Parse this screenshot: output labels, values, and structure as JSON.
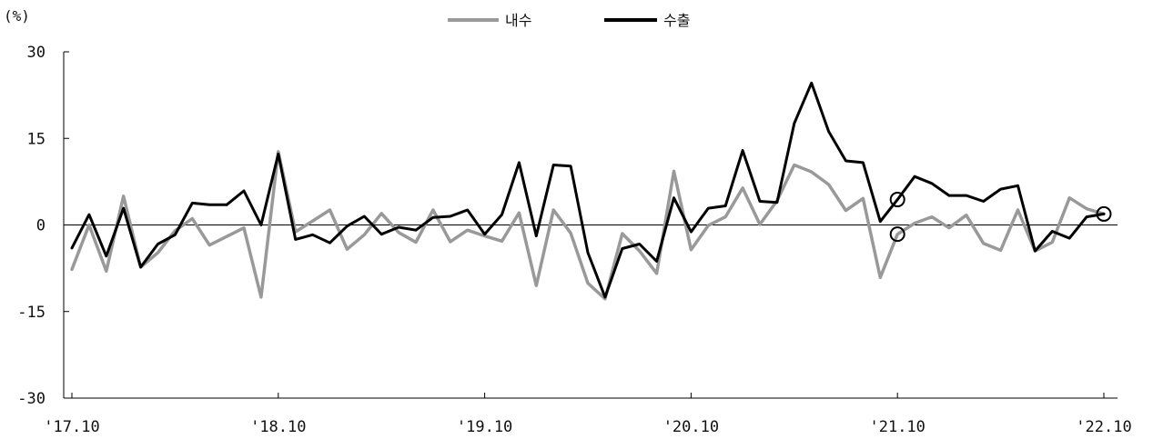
{
  "chart_data": {
    "type": "line",
    "title": "",
    "unit_label": "(%)",
    "xlabel": "",
    "ylabel": "",
    "ylim": [
      -30,
      30
    ],
    "yticks": [
      30,
      15,
      0,
      -15,
      -30
    ],
    "ytick_labels": [
      "30",
      "15",
      "0",
      "-15",
      "-30"
    ],
    "x_start": "2017-10",
    "x_end": "2022-10",
    "xticks": [
      {
        "label": "'17.10",
        "index": 0
      },
      {
        "label": "'18.10",
        "index": 12
      },
      {
        "label": "'19.10",
        "index": 24
      },
      {
        "label": "'20.10",
        "index": 36
      },
      {
        "label": "'21.10",
        "index": 48
      },
      {
        "label": "'22.10",
        "index": 60
      }
    ],
    "legend_position": "top-center",
    "series": [
      {
        "name": "내수",
        "color": "#999999",
        "values": [
          -7.7,
          0.0,
          -8.0,
          5.0,
          -7.3,
          -4.8,
          -1.0,
          1.1,
          -3.5,
          -2.0,
          -0.5,
          -12.5,
          12.7,
          -1.2,
          0.7,
          2.6,
          -4.2,
          -1.7,
          2.0,
          -1.3,
          -3.0,
          2.6,
          -2.9,
          -0.9,
          -1.9,
          -2.8,
          2.1,
          -10.5,
          2.6,
          -1.4,
          -10.1,
          -12.8,
          -1.5,
          -4.5,
          -8.4,
          9.3,
          -4.3,
          -0.1,
          1.4,
          6.4,
          0.1,
          4.2,
          10.4,
          9.2,
          7.0,
          2.5,
          4.6,
          -9.1,
          -1.6,
          0.3,
          1.4,
          -0.5,
          1.7,
          -3.2,
          -4.4,
          2.6,
          -4.5,
          -3.0,
          4.7,
          2.8,
          1.9
        ]
      },
      {
        "name": "수출",
        "color": "#000000",
        "values": [
          -4.0,
          1.8,
          -5.4,
          2.9,
          -7.3,
          -3.3,
          -1.7,
          3.8,
          3.5,
          3.5,
          5.9,
          0.0,
          12.3,
          -2.5,
          -1.7,
          -3.1,
          -0.2,
          1.5,
          -1.6,
          -0.4,
          -0.9,
          1.3,
          1.5,
          2.6,
          -1.6,
          1.8,
          10.8,
          -1.9,
          10.4,
          10.2,
          -4.8,
          -12.5,
          -4.1,
          -3.3,
          -6.3,
          4.7,
          -1.2,
          2.9,
          3.3,
          12.9,
          4.1,
          3.9,
          17.6,
          24.6,
          16.2,
          11.1,
          10.8,
          0.6,
          4.4,
          8.4,
          7.2,
          5.1,
          5.1,
          4.1,
          6.2,
          6.8,
          -4.5,
          -1.1,
          -2.3,
          1.4,
          1.9
        ]
      }
    ],
    "highlighted_points": [
      {
        "series": "수출",
        "index": 48,
        "value": 4.4
      },
      {
        "series": "내수",
        "index": 48,
        "value": -1.6
      },
      {
        "series": "수출",
        "index": 60,
        "value": 1.9
      }
    ]
  }
}
